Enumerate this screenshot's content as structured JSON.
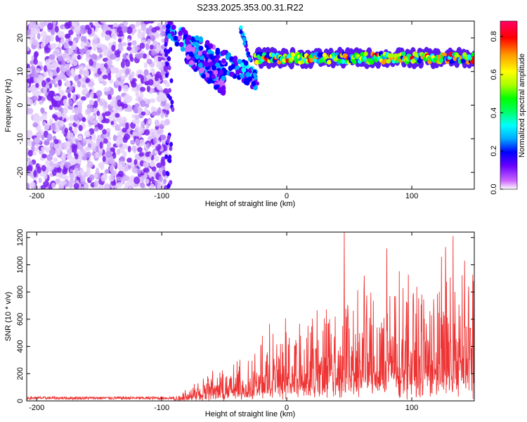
{
  "title": "S233.2025.353.00.31.R22",
  "chart_data": [
    {
      "type": "heatmap",
      "title": "",
      "xlabel": "Height of straight line (km)",
      "ylabel": "Frequency (Hz)",
      "xlim": [
        -208,
        150
      ],
      "ylim": [
        -25,
        25
      ],
      "xticks": [
        -200,
        -100,
        0,
        100
      ],
      "yticks": [
        -20,
        -10,
        0,
        10,
        20
      ],
      "colorbar": {
        "label": "Normalized spectral amplitude",
        "range": [
          0.0,
          0.88
        ],
        "ticks": [
          "0.0",
          "0.2",
          "0.4",
          "0.6",
          "0.8"
        ],
        "colors": [
          "#ffffff",
          "#cc66ff",
          "#6600ff",
          "#0000ff",
          "#00aaff",
          "#00ffff",
          "#00ff66",
          "#00ff00",
          "#aaff00",
          "#ffff00",
          "#ff9900",
          "#ff0000",
          "#ff0066"
        ]
      },
      "features": [
        {
          "name": "noise-band",
          "x_range": [
            -208,
            -95
          ],
          "y_range": [
            -25,
            25
          ],
          "amplitude": 0.15
        },
        {
          "name": "descending-arc-upper",
          "x_from": -95,
          "x_to": -25,
          "y_from": 22,
          "y_to": 8,
          "amplitude": 0.3
        },
        {
          "name": "descending-arc-lower",
          "x_from": -80,
          "x_to": -50,
          "y_from": 16,
          "y_to": 6,
          "amplitude": 0.25
        },
        {
          "name": "steady-line",
          "x_from": -25,
          "x_to": 150,
          "y_center": 14,
          "amplitude": 0.75
        }
      ]
    },
    {
      "type": "line",
      "title": "",
      "xlabel": "Height of straight line (km)",
      "ylabel": "SNR (10 * v/v)",
      "xlim": [
        -208,
        150
      ],
      "ylim": [
        0,
        1240
      ],
      "xticks": [
        -200,
        -100,
        0,
        100
      ],
      "yticks": [
        0,
        200,
        400,
        600,
        800,
        1000,
        1200
      ],
      "color": "#ee3333",
      "envelope": [
        {
          "x": -208,
          "y": 35
        },
        {
          "x": -90,
          "y": 35
        },
        {
          "x": -70,
          "y": 200
        },
        {
          "x": -40,
          "y": 300
        },
        {
          "x": -20,
          "y": 500
        },
        {
          "x": 0,
          "y": 650
        },
        {
          "x": 40,
          "y": 900
        },
        {
          "x": 80,
          "y": 1000
        },
        {
          "x": 150,
          "y": 1100
        }
      ],
      "peaks": [
        {
          "x": 46,
          "y": 1240
        },
        {
          "x": 133,
          "y": 1210
        },
        {
          "x": 127,
          "y": 1130
        },
        {
          "x": 80,
          "y": 1120
        }
      ]
    }
  ]
}
